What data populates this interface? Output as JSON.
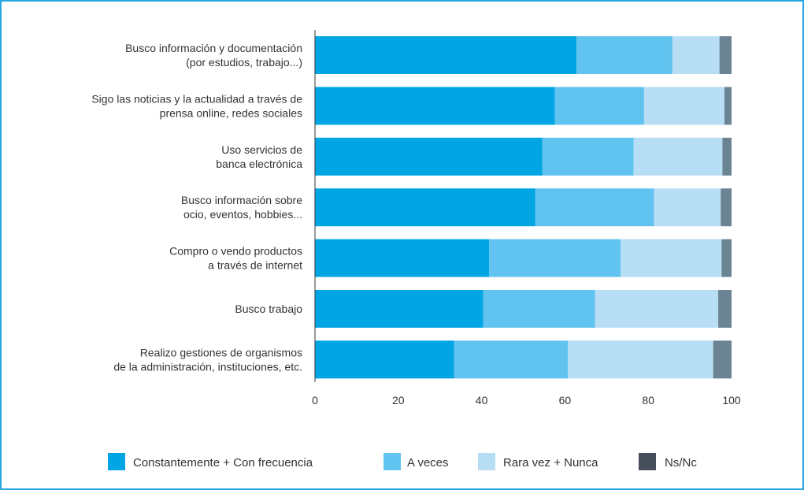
{
  "chart_data": {
    "type": "bar",
    "orientation": "horizontal",
    "stacked": true,
    "categories": [
      [
        "Busco información y documentación",
        "(por estudios, trabajo...)"
      ],
      [
        "Sigo las noticias y la actualidad a través de",
        "prensa online, redes sociales"
      ],
      [
        "Uso servicios de",
        "banca electrónica"
      ],
      [
        "Busco información sobre",
        "ocio, eventos, hobbies..."
      ],
      [
        "Compro o vendo productos",
        "a través de internet"
      ],
      [
        "Busco trabajo"
      ],
      [
        "Realizo gestiones de organismos",
        "de la administración, instituciones, etc."
      ]
    ],
    "series": [
      {
        "name": "Constantemente + Con frecuencia",
        "color": "#00a6e4",
        "values": [
          62.8,
          57.6,
          54.6,
          52.9,
          41.8,
          40.4,
          33.4
        ]
      },
      {
        "name": "A veces",
        "color": "#61c3ef",
        "values": [
          23.0,
          21.4,
          21.9,
          28.5,
          31.6,
          26.8,
          27.3
        ]
      },
      {
        "name": "Rara vez + Nunca",
        "color": "#b7def5",
        "values": [
          11.3,
          19.3,
          21.3,
          16.0,
          24.2,
          29.6,
          34.9
        ]
      },
      {
        "name": "Ns/Nc",
        "color": "#6b8493",
        "values": [
          2.9,
          1.7,
          2.2,
          2.6,
          2.4,
          3.2,
          4.4
        ]
      }
    ],
    "xlim": [
      0,
      100
    ],
    "xticks": [
      "0",
      "20",
      "40",
      "60",
      "80",
      "100"
    ],
    "legend_swatch_colors": [
      "#00a6e4",
      "#61c3ef",
      "#b7def5",
      "#464e5c"
    ],
    "legend_position": "bottom",
    "grid": false,
    "title": "",
    "xlabel": "",
    "ylabel": ""
  }
}
